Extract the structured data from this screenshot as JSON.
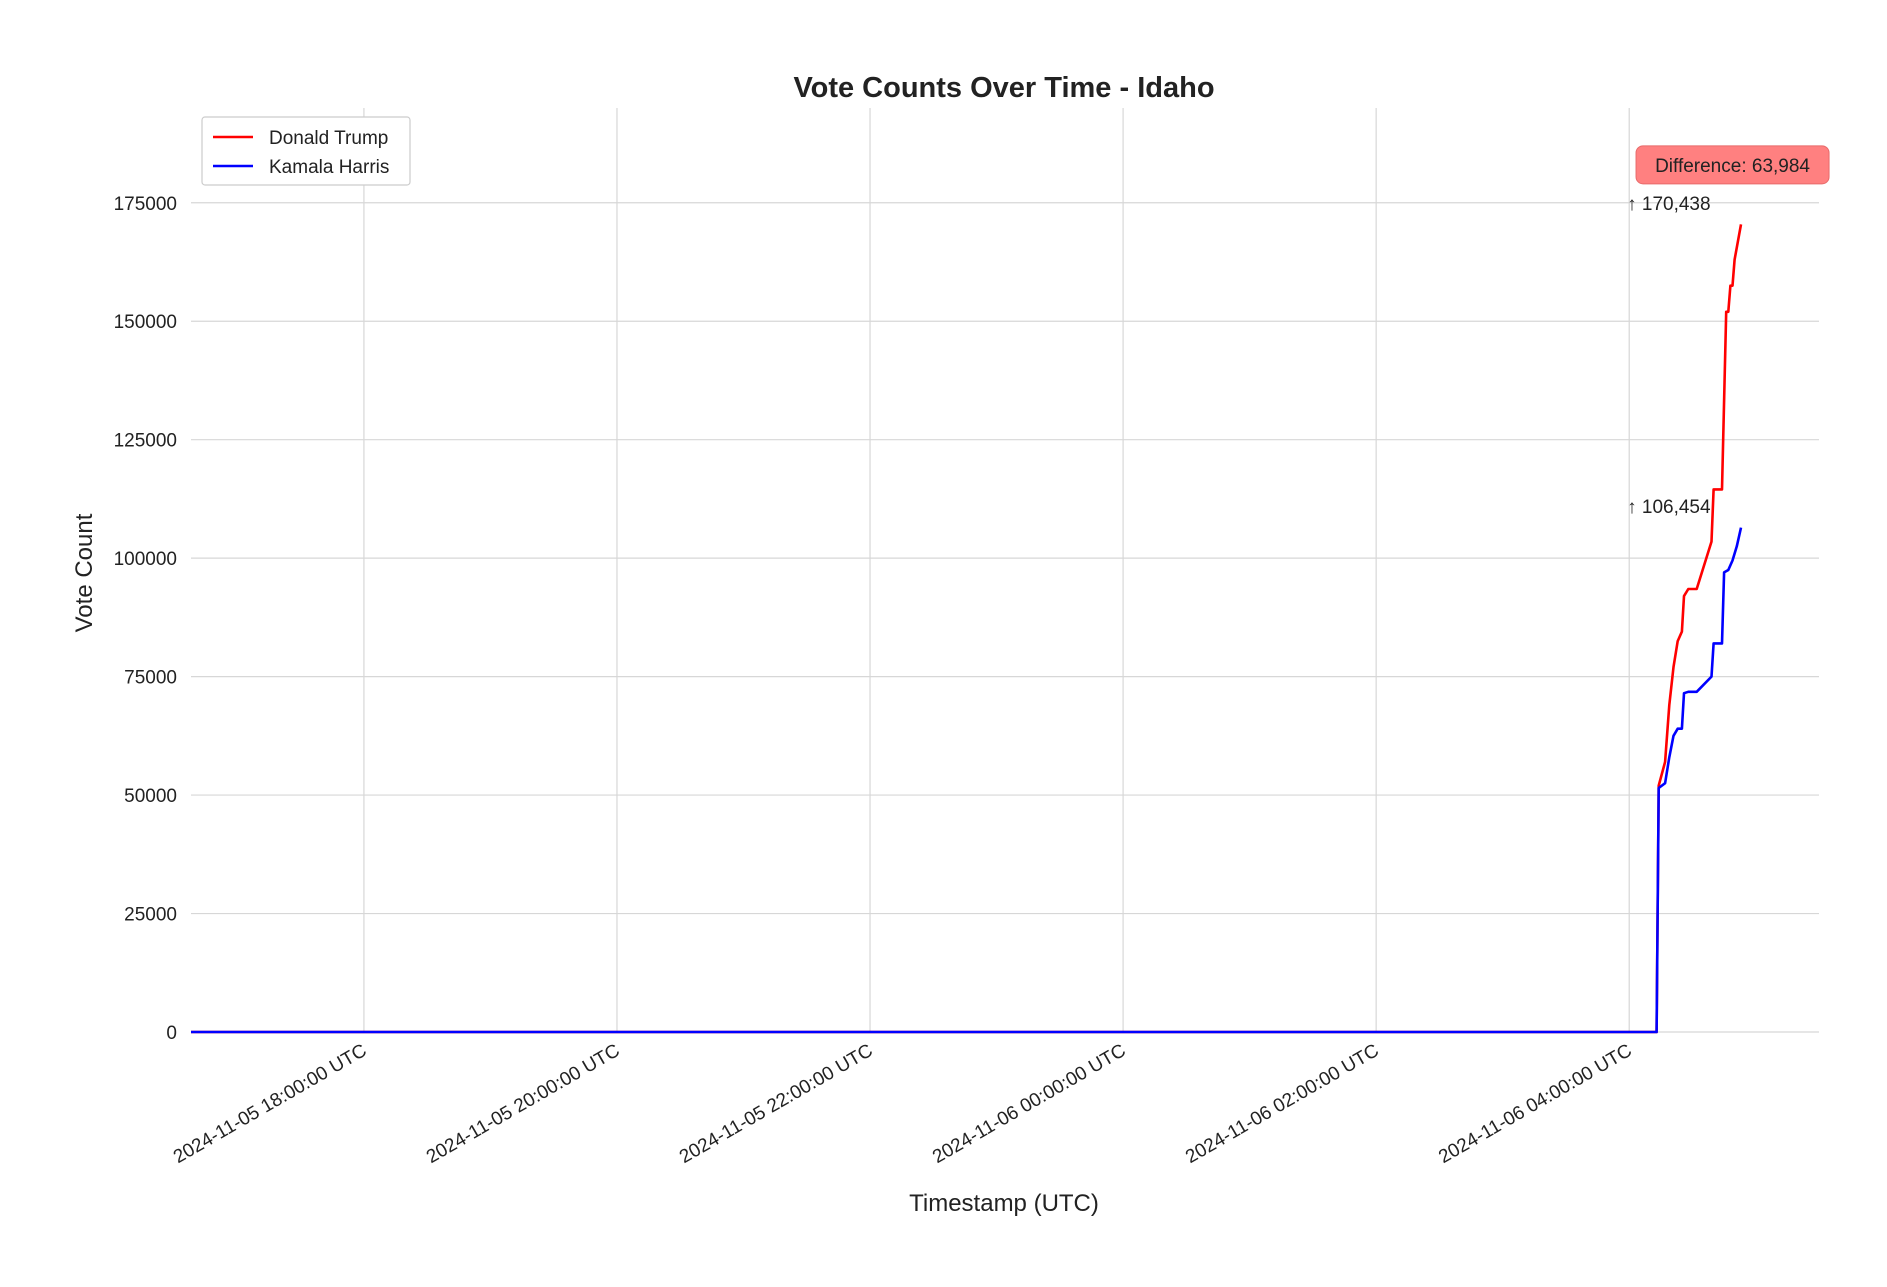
{
  "chart_data": {
    "type": "line",
    "title": "Vote Counts Over Time - Idaho",
    "xlabel": "Timestamp (UTC)",
    "ylabel": "Vote Count",
    "ylim": [
      0,
      195000
    ],
    "xlim": [
      "2024-11-05 16:38",
      "2024-11-06 05:30"
    ],
    "grid": true,
    "legend_position": "top-left",
    "x_ticks": [
      {
        "t": "2024-11-05 18:00",
        "label": "2024-11-05 18:00:00 UTC"
      },
      {
        "t": "2024-11-05 20:00",
        "label": "2024-11-05 20:00:00 UTC"
      },
      {
        "t": "2024-11-05 22:00",
        "label": "2024-11-05 22:00:00 UTC"
      },
      {
        "t": "2024-11-06 00:00",
        "label": "2024-11-06 00:00:00 UTC"
      },
      {
        "t": "2024-11-06 02:00",
        "label": "2024-11-06 02:00:00 UTC"
      },
      {
        "t": "2024-11-06 04:00",
        "label": "2024-11-06 04:00:00 UTC"
      }
    ],
    "y_ticks": [
      {
        "v": 0,
        "label": "0"
      },
      {
        "v": 25000,
        "label": "25000"
      },
      {
        "v": 50000,
        "label": "50000"
      },
      {
        "v": 75000,
        "label": "75000"
      },
      {
        "v": 100000,
        "label": "100000"
      },
      {
        "v": 125000,
        "label": "125000"
      },
      {
        "v": 150000,
        "label": "150000"
      },
      {
        "v": 175000,
        "label": "175000"
      }
    ],
    "series": [
      {
        "name": "Donald Trump",
        "color": "#ff0000",
        "points": [
          [
            "2024-11-05 16:38",
            0
          ],
          [
            "2024-11-06 04:13",
            0
          ],
          [
            "2024-11-06 04:14",
            52000
          ],
          [
            "2024-11-06 04:17",
            57000
          ],
          [
            "2024-11-06 04:19",
            69000
          ],
          [
            "2024-11-06 04:21",
            77000
          ],
          [
            "2024-11-06 04:23",
            82500
          ],
          [
            "2024-11-06 04:25",
            84500
          ],
          [
            "2024-11-06 04:26",
            92000
          ],
          [
            "2024-11-06 04:28",
            93500
          ],
          [
            "2024-11-06 04:32",
            93500
          ],
          [
            "2024-11-06 04:39",
            103500
          ],
          [
            "2024-11-06 04:40",
            114500
          ],
          [
            "2024-11-06 04:44",
            114500
          ],
          [
            "2024-11-06 04:46",
            152000
          ],
          [
            "2024-11-06 04:47",
            152000
          ],
          [
            "2024-11-06 04:48",
            157500
          ],
          [
            "2024-11-06 04:49",
            157500
          ],
          [
            "2024-11-06 04:50",
            163000
          ],
          [
            "2024-11-06 04:53",
            170438
          ]
        ]
      },
      {
        "name": "Kamala Harris",
        "color": "#0000ff",
        "points": [
          [
            "2024-11-05 16:38",
            0
          ],
          [
            "2024-11-06 04:13",
            0
          ],
          [
            "2024-11-06 04:14",
            51500
          ],
          [
            "2024-11-06 04:17",
            52500
          ],
          [
            "2024-11-06 04:19",
            58000
          ],
          [
            "2024-11-06 04:21",
            62500
          ],
          [
            "2024-11-06 04:23",
            64000
          ],
          [
            "2024-11-06 04:25",
            64000
          ],
          [
            "2024-11-06 04:26",
            71500
          ],
          [
            "2024-11-06 04:28",
            71800
          ],
          [
            "2024-11-06 04:32",
            71800
          ],
          [
            "2024-11-06 04:39",
            75000
          ],
          [
            "2024-11-06 04:40",
            82000
          ],
          [
            "2024-11-06 04:44",
            82000
          ],
          [
            "2024-11-06 04:45",
            97000
          ],
          [
            "2024-11-06 04:47",
            97500
          ],
          [
            "2024-11-06 04:49",
            99500
          ],
          [
            "2024-11-06 04:51",
            102500
          ],
          [
            "2024-11-06 04:53",
            106454
          ]
        ]
      }
    ],
    "annotations": [
      {
        "text": "↑ 170,438",
        "t": "2024-11-06 03:59",
        "v": 173500
      },
      {
        "text": "↑ 106,454",
        "t": "2024-11-06 03:59",
        "v": 109500
      }
    ],
    "difference_box": {
      "text": "Difference: 63,984",
      "t": "2024-11-06 04:49",
      "v": 183000,
      "color": "#ff8080"
    }
  }
}
